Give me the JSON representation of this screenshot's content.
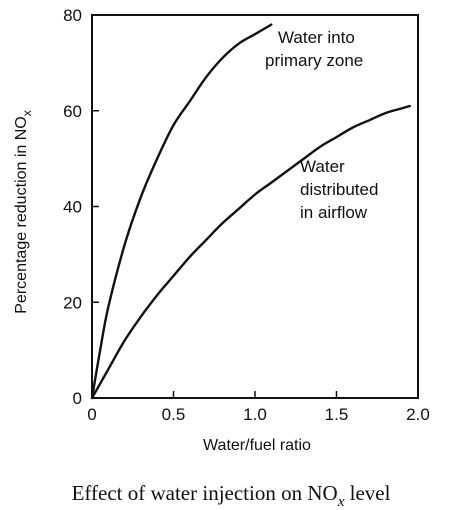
{
  "chart_data": {
    "type": "line",
    "xlabel": "Water/fuel ratio",
    "ylabel_main": "Percentage reduction in NO",
    "ylabel_sub": "x",
    "xlim": [
      0,
      2.0
    ],
    "ylim": [
      0,
      80
    ],
    "x_ticks": [
      0,
      0.5,
      1.0,
      1.5,
      2.0
    ],
    "x_tick_labels": [
      "0",
      "0.5",
      "1.0",
      "1.5",
      "2.0"
    ],
    "y_ticks": [
      0,
      20,
      40,
      60,
      80
    ],
    "y_tick_labels": [
      "0",
      "20",
      "40",
      "60",
      "80"
    ],
    "grid": false,
    "series": [
      {
        "name_lines": [
          "Water into",
          "primary zone"
        ],
        "x": [
          0,
          0.05,
          0.1,
          0.2,
          0.3,
          0.4,
          0.5,
          0.6,
          0.7,
          0.8,
          0.9,
          1.0,
          1.1
        ],
        "y": [
          0,
          10,
          19,
          32,
          42,
          50,
          57,
          62,
          67,
          71,
          74,
          76,
          78
        ]
      },
      {
        "name_lines": [
          "Water",
          "distributed",
          "in airflow"
        ],
        "x": [
          0,
          0.1,
          0.2,
          0.3,
          0.4,
          0.5,
          0.6,
          0.7,
          0.8,
          0.9,
          1.0,
          1.1,
          1.2,
          1.3,
          1.4,
          1.5,
          1.6,
          1.7,
          1.8,
          1.9,
          1.95
        ],
        "y": [
          0,
          6,
          12,
          17,
          21.5,
          25.5,
          29.5,
          33,
          36.5,
          39.5,
          42.5,
          45,
          47.5,
          50,
          52.5,
          54.5,
          56.5,
          58,
          59.5,
          60.5,
          61
        ]
      }
    ]
  },
  "caption": {
    "main": "Effect of water injection on NO",
    "sub": "x",
    "suffix": " level"
  }
}
